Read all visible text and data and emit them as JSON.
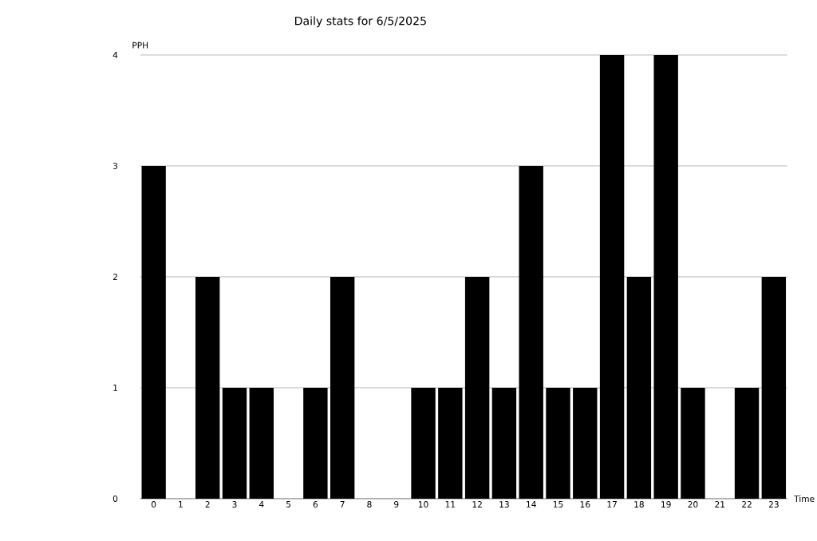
{
  "chart_data": {
    "type": "bar",
    "title": "Daily stats for 6/5/2025",
    "xlabel": "Time",
    "ylabel": "PPH",
    "categories": [
      "0",
      "1",
      "2",
      "3",
      "4",
      "5",
      "6",
      "7",
      "8",
      "9",
      "10",
      "11",
      "12",
      "13",
      "14",
      "15",
      "16",
      "17",
      "18",
      "19",
      "20",
      "21",
      "22",
      "23"
    ],
    "values": [
      3,
      0,
      2,
      1,
      1,
      0,
      1,
      2,
      0,
      0,
      1,
      1,
      2,
      1,
      3,
      1,
      1,
      4,
      2,
      4,
      1,
      0,
      1,
      2
    ],
    "color": "#000000",
    "ylim": [
      0,
      4
    ],
    "yticks": [
      0,
      1,
      2,
      3,
      4
    ],
    "grid": "y"
  }
}
